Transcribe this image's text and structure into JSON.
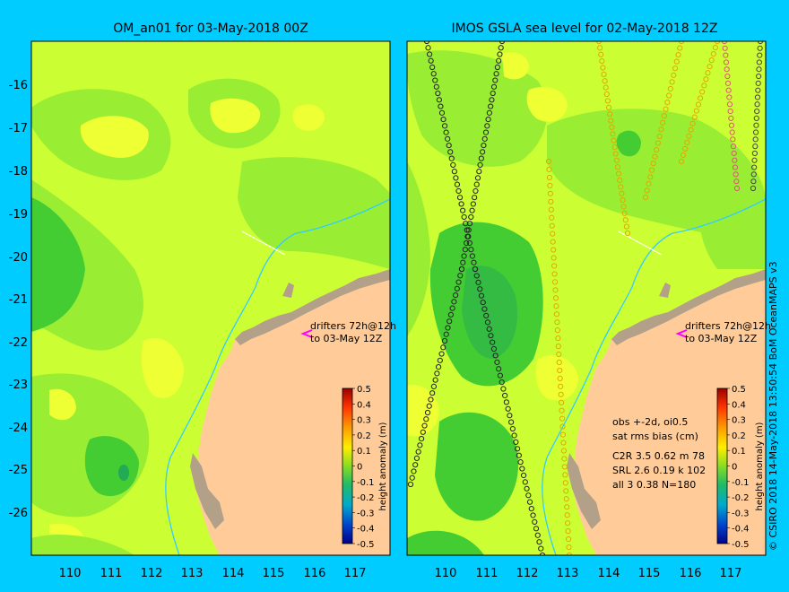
{
  "colors": {
    "background": "#00ccff",
    "land": "#ffcc99",
    "coast": "#b3a088",
    "sea_light": "#ccff33",
    "sea_mid": "#99ee33",
    "sea_dark": "#44cc33",
    "sea_yellow": "#eeff33",
    "bathy_line": "#33ccff",
    "drifter": "#ff00ff"
  },
  "left_panel": {
    "title": "OM_an01 for 03-May-2018 00Z",
    "drifter_label_1": "drifters 72h@12h",
    "drifter_label_2": "to 03-May 12Z"
  },
  "right_panel": {
    "title": "IMOS GSLA sea level  for 02-May-2018 12Z",
    "drifter_label_1": "drifters 72h@12h",
    "drifter_label_2": "to 03-May 12Z",
    "stats": [
      "obs +-2d, oi0.5",
      "sat rms bias (cm)",
      "C2R   3.5 0.62 m 78",
      "SRL    2.6 0.19 k 102",
      "all    3 0.38 N=180"
    ]
  },
  "axes": {
    "x_ticks": [
      "110",
      "111",
      "112",
      "113",
      "114",
      "115",
      "116",
      "117"
    ],
    "y_ticks": [
      "-16",
      "-17",
      "-18",
      "-19",
      "-20",
      "-21",
      "-22",
      "-23",
      "-24",
      "-25",
      "-26"
    ]
  },
  "colorbar": {
    "label": "height anomaly (m)",
    "ticks": [
      "0.5",
      "0.4",
      "0.3",
      "0.2",
      "0.1",
      "0",
      "-0.1",
      "-0.2",
      "-0.3",
      "-0.4",
      "-0.5"
    ]
  },
  "credit": "© CSIRO 2018  14-May-2018 13:50:54 BoM OceanMAPS v3"
}
